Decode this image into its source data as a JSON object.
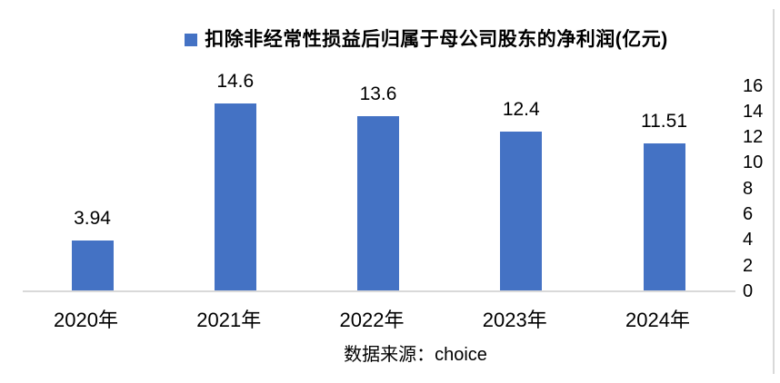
{
  "legend": {
    "label": "扣除非经常性损益后归属于母公司股东的净利润(亿元)",
    "marker_color": "#4472c4"
  },
  "source_caption": "数据来源：choice",
  "colors": {
    "bar": "#4472c4",
    "axis_line": "#d9d9d9",
    "text": "#000000"
  },
  "chart_data": {
    "type": "bar",
    "title": "扣除非经常性损益后归属于母公司股东的净利润(亿元)",
    "categories": [
      "2020年",
      "2021年",
      "2022年",
      "2023年",
      "2024年"
    ],
    "values": [
      3.94,
      14.6,
      13.6,
      12.4,
      11.51
    ],
    "value_labels": [
      "3.94",
      "14.6",
      "13.6",
      "12.4",
      "11.51"
    ],
    "xlabel": "",
    "ylabel": "",
    "ylim": [
      0,
      16
    ],
    "yticks": [
      0,
      2,
      4,
      6,
      8,
      10,
      12,
      14,
      16
    ],
    "value_axis_side": "right",
    "legend_position": "top",
    "grid": false,
    "bar_color": "#4472c4",
    "source": "数据来源：choice"
  }
}
